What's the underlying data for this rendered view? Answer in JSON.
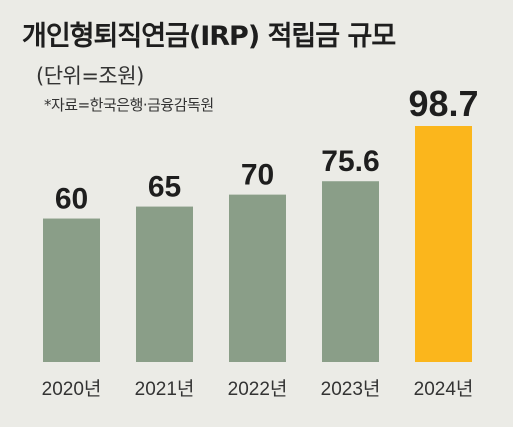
{
  "chart_data": {
    "type": "bar",
    "title": "개인형퇴직연금(IRP) 적립금 규모",
    "unit_label": "(단위=조원)",
    "source": "*자료=한국은행·금융감독원",
    "categories": [
      "2020년",
      "2021년",
      "2022년",
      "2023년",
      "2024년"
    ],
    "values": [
      60,
      65,
      70,
      75.6,
      98.7
    ],
    "value_labels": [
      "60",
      "65",
      "70",
      "75.6",
      "98.7"
    ],
    "colors": {
      "default": "#8a9e88",
      "highlight": "#fbb61c",
      "highlight_index": 4
    },
    "ylim": [
      0,
      100
    ],
    "grid": false,
    "legend": "none"
  }
}
